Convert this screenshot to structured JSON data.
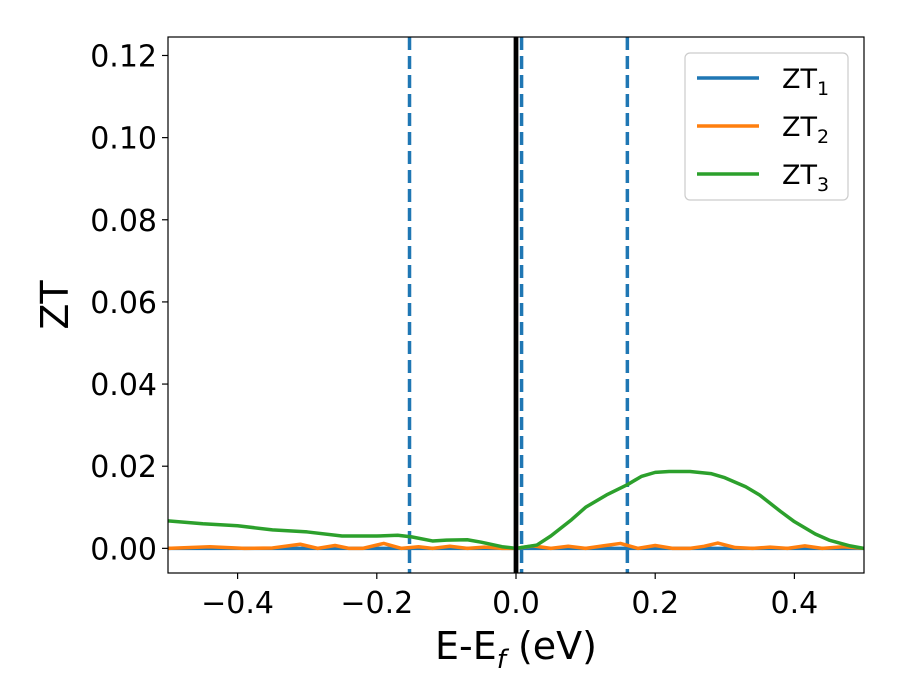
{
  "chart_data": {
    "type": "line",
    "title": "",
    "xlabel": {
      "main": "E-E",
      "sub": "f",
      "unit": " (eV)"
    },
    "ylabel": "ZT",
    "xlim": [
      -0.5,
      0.5
    ],
    "ylim": [
      -0.006,
      0.1245
    ],
    "x_ticks": [
      -0.4,
      -0.2,
      0.0,
      0.2,
      0.4
    ],
    "x_tick_labels": [
      "−0.4",
      "−0.2",
      "0.0",
      "0.2",
      "0.4"
    ],
    "y_ticks": [
      0.0,
      0.02,
      0.04,
      0.06,
      0.08,
      0.1,
      0.12
    ],
    "y_tick_labels": [
      "0.00",
      "0.02",
      "0.04",
      "0.06",
      "0.08",
      "0.10",
      "0.12"
    ],
    "grid": false,
    "legend_position": "top-right",
    "series": [
      {
        "name": "ZT",
        "sub": "1",
        "color": "#1f77b4",
        "x": [
          -0.5,
          0.5
        ],
        "y": [
          0.0,
          0.0
        ]
      },
      {
        "name": "ZT",
        "sub": "2",
        "color": "#ff7f0e",
        "x": [
          -0.5,
          -0.44,
          -0.39,
          -0.35,
          -0.31,
          -0.285,
          -0.26,
          -0.24,
          -0.22,
          -0.19,
          -0.165,
          -0.14,
          -0.12,
          -0.095,
          -0.07,
          -0.045,
          -0.02,
          0.0,
          0.025,
          0.05,
          0.075,
          0.1,
          0.125,
          0.15,
          0.175,
          0.2,
          0.225,
          0.25,
          0.27,
          0.29,
          0.315,
          0.34,
          0.365,
          0.39,
          0.415,
          0.44,
          0.47,
          0.5
        ],
        "y": [
          0.0,
          0.0004,
          0.0,
          0.0001,
          0.001,
          0.0,
          0.0007,
          0.0,
          0.0,
          0.0012,
          0.0,
          0.0004,
          0.0,
          0.0005,
          0.0,
          0.0003,
          0.0,
          0.0,
          0.0006,
          0.0,
          0.0005,
          0.0,
          0.0006,
          0.0012,
          0.0,
          0.0007,
          0.0,
          0.0,
          0.0005,
          0.0013,
          0.0002,
          0.0,
          0.0003,
          0.0,
          0.0006,
          0.0,
          0.0004,
          0.0
        ]
      },
      {
        "name": "ZT",
        "sub": "3",
        "color": "#2ca02c",
        "x": [
          -0.5,
          -0.45,
          -0.4,
          -0.35,
          -0.3,
          -0.25,
          -0.2,
          -0.17,
          -0.15,
          -0.12,
          -0.1,
          -0.07,
          -0.05,
          -0.02,
          0.0,
          0.03,
          0.05,
          0.08,
          0.1,
          0.13,
          0.16,
          0.18,
          0.2,
          0.22,
          0.25,
          0.28,
          0.3,
          0.33,
          0.35,
          0.38,
          0.4,
          0.43,
          0.45,
          0.48,
          0.5
        ],
        "y": [
          0.0067,
          0.006,
          0.0055,
          0.0045,
          0.004,
          0.003,
          0.003,
          0.0032,
          0.0028,
          0.0018,
          0.002,
          0.0021,
          0.0015,
          0.0004,
          0.0,
          0.0008,
          0.003,
          0.007,
          0.01,
          0.013,
          0.0155,
          0.0175,
          0.0185,
          0.0187,
          0.0187,
          0.0182,
          0.0172,
          0.015,
          0.013,
          0.009,
          0.0065,
          0.0035,
          0.002,
          0.0006,
          0.0
        ]
      }
    ],
    "reference_lines": [
      {
        "kind": "dashed",
        "x": -0.153,
        "color": "#1f77b4"
      },
      {
        "kind": "dashed",
        "x": 0.008,
        "color": "#1f77b4"
      },
      {
        "kind": "dashed",
        "x": 0.16,
        "color": "#1f77b4"
      },
      {
        "kind": "solid",
        "x": 0.0,
        "color": "#000000"
      }
    ]
  }
}
